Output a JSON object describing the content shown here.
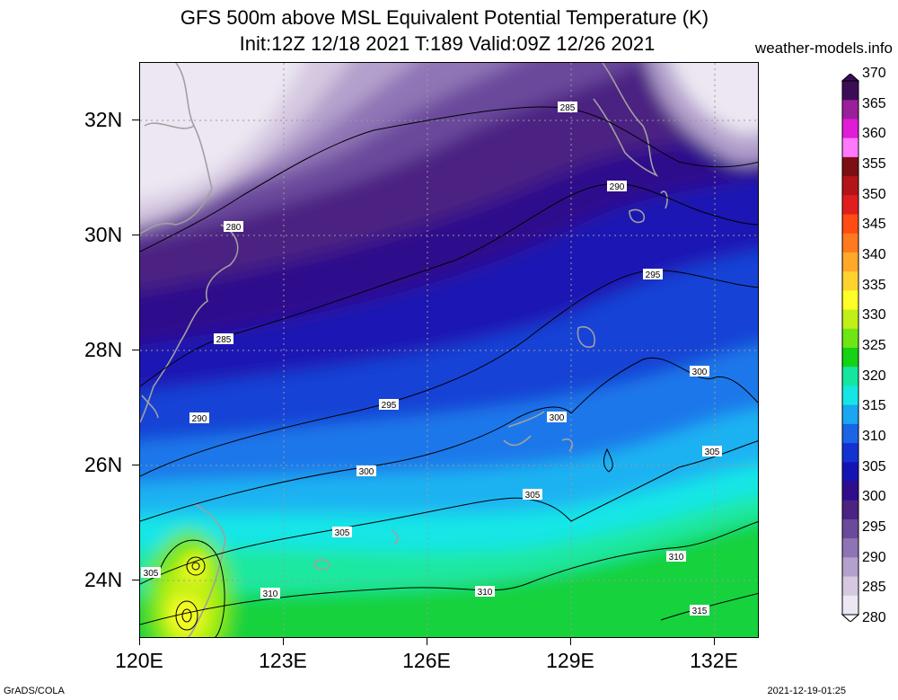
{
  "title": {
    "line1": "GFS 500m above MSL Equivalent Potential Temperature (K)",
    "line2": "Init:12Z 12/18 2021 T:189 Valid:09Z 12/26 2021"
  },
  "site": "weather-models.info",
  "footer": {
    "left": "GrADS/COLA",
    "right": "2021-12-19-01:25"
  },
  "axes": {
    "lat_labels": [
      "32N",
      "30N",
      "28N",
      "26N",
      "24N"
    ],
    "lon_labels": [
      "120E",
      "123E",
      "126E",
      "129E",
      "132E"
    ]
  },
  "colorbar": {
    "levels": [
      "370",
      "365",
      "360",
      "355",
      "350",
      "345",
      "340",
      "335",
      "330",
      "325",
      "320",
      "315",
      "310",
      "305",
      "300",
      "295",
      "290",
      "285",
      "280"
    ],
    "colors": [
      "#3c0d55",
      "#9b1e9b",
      "#e01cd6",
      "#ff78ff",
      "#7b0f12",
      "#b41419",
      "#e11e1e",
      "#ff4b14",
      "#ff7a1e",
      "#ffa82a",
      "#ffd230",
      "#ffff28",
      "#c0f018",
      "#6ee614",
      "#14d214",
      "#14e6a0",
      "#14e6e6",
      "#1aa6f0",
      "#1a64e6",
      "#1432d2",
      "#1414b4",
      "#2e0e8c",
      "#4b2382",
      "#6b4a9b",
      "#8f74b5",
      "#b3a0cc",
      "#d5c8e0",
      "#ece7f2"
    ]
  },
  "contours": {
    "labels": [
      "280",
      "285",
      "285",
      "290",
      "290",
      "295",
      "295",
      "300",
      "300",
      "300",
      "305",
      "305",
      "305",
      "305",
      "310",
      "310",
      "310",
      "315"
    ]
  },
  "colors": {
    "coast": "#a0a0a0",
    "grid": "#9a9a9a"
  }
}
